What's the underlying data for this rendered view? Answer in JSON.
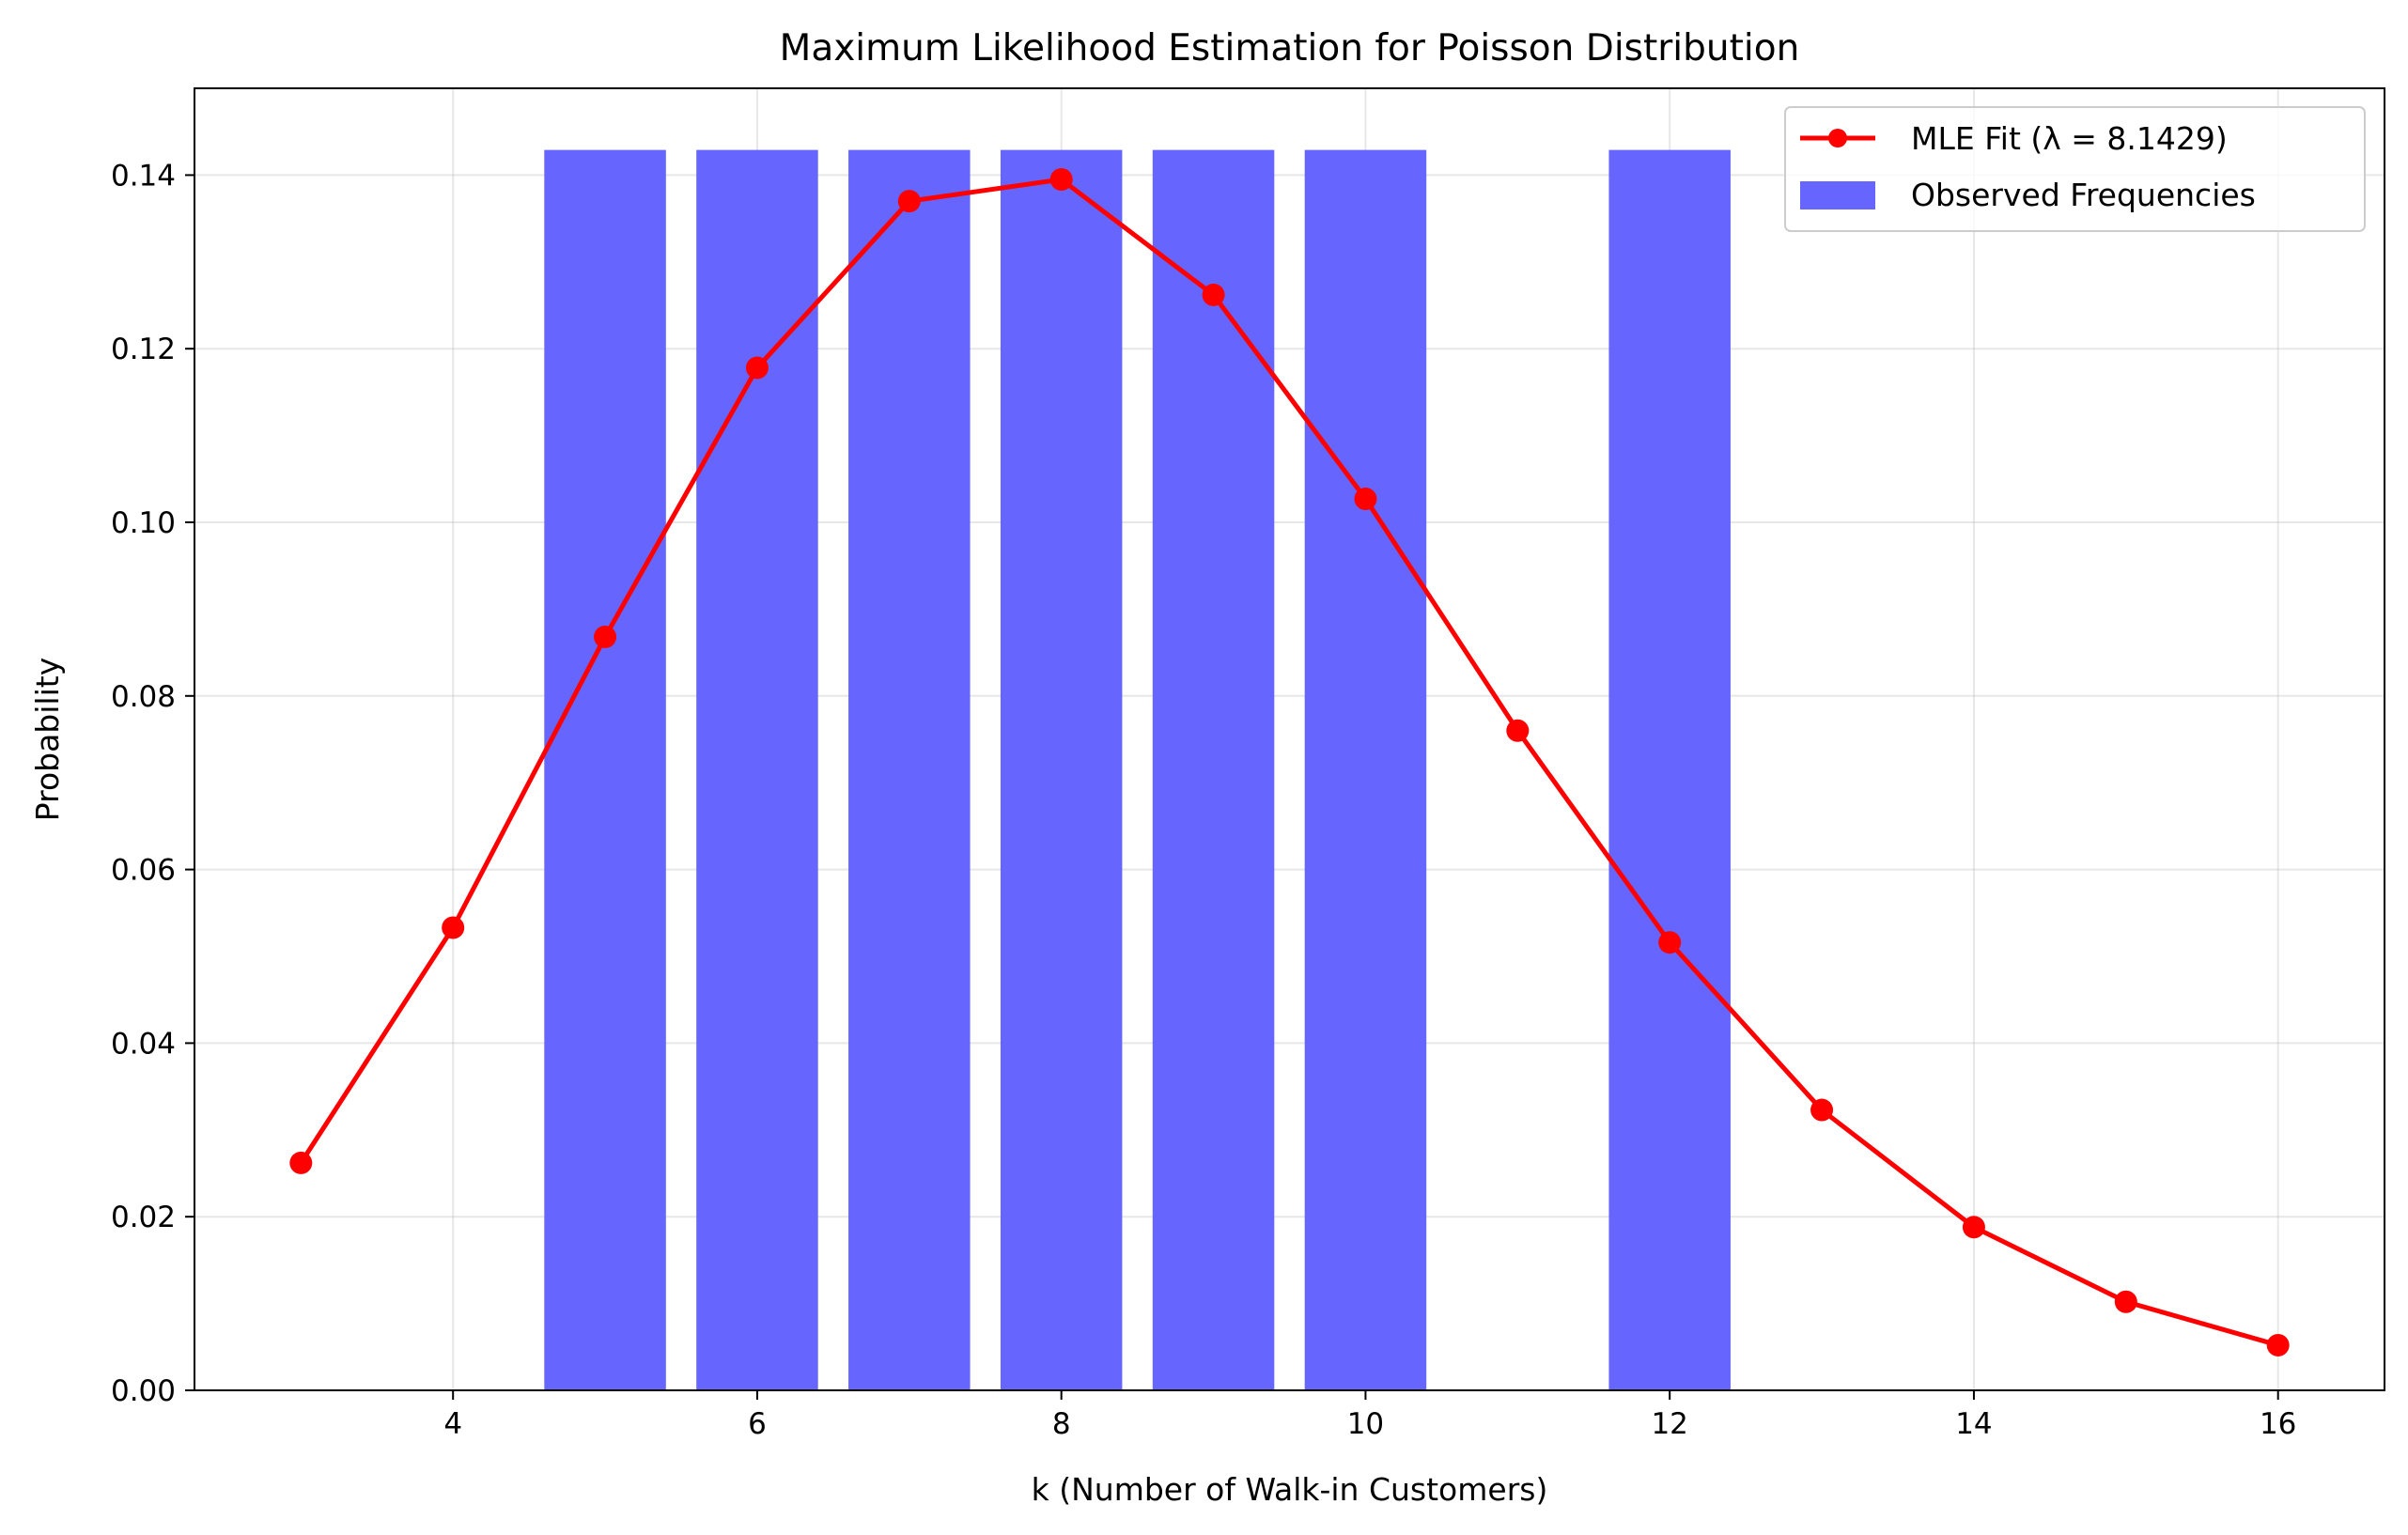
{
  "chart_data": {
    "type": "bar+line",
    "title": "Maximum Likelihood Estimation for Poisson Distribution",
    "xlabel": "k (Number of Walk-in Customers)",
    "ylabel": "Probability",
    "xlim": [
      2.3,
      16.7
    ],
    "ylim": [
      0,
      0.15
    ],
    "xticks": [
      4,
      6,
      8,
      10,
      12,
      14,
      16
    ],
    "xtick_labels": [
      "4",
      "6",
      "8",
      "10",
      "12",
      "14",
      "16"
    ],
    "yticks": [
      0,
      0.02,
      0.04,
      0.06,
      0.08,
      0.1,
      0.12,
      0.14
    ],
    "ytick_labels": [
      "0.00",
      "0.02",
      "0.04",
      "0.06",
      "0.08",
      "0.10",
      "0.12",
      "0.14"
    ],
    "grid": true,
    "legend_position": "top-right",
    "bars": {
      "name": "Observed Frequencies",
      "color": "#6666ff",
      "width": 0.8,
      "x": [
        5,
        6,
        7,
        8,
        9,
        10,
        12
      ],
      "values": [
        0.1429,
        0.1429,
        0.1429,
        0.1429,
        0.1429,
        0.1429,
        0.1429
      ]
    },
    "line": {
      "name": "MLE Fit (λ = 8.1429)",
      "color": "#ff0000",
      "x": [
        3,
        4,
        5,
        6,
        7,
        8,
        9,
        10,
        11,
        12,
        13,
        14,
        15,
        16
      ],
      "values": [
        0.0262,
        0.0533,
        0.0868,
        0.1178,
        0.137,
        0.1395,
        0.1262,
        0.1027,
        0.076,
        0.0516,
        0.0323,
        0.0188,
        0.0102,
        0.0052
      ]
    },
    "legend": [
      "MLE Fit (λ = 8.1429)",
      "Observed Frequencies"
    ]
  }
}
